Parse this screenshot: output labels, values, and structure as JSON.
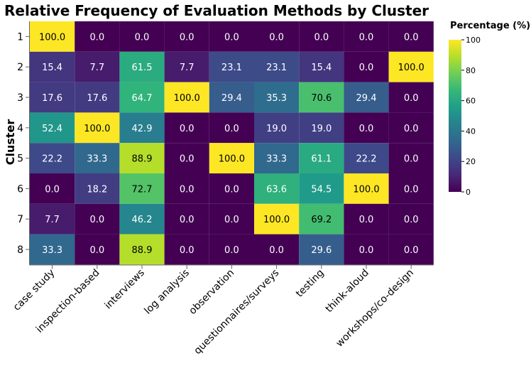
{
  "chart_data": {
    "type": "heatmap",
    "title": "Relative Frequency of Evaluation Methods by Cluster",
    "xlabel": "",
    "ylabel": "Cluster",
    "x_categories": [
      "case study",
      "inspection-based",
      "interviews",
      "log analysis",
      "observation",
      "questionnaires/surveys",
      "testing",
      "think-aloud",
      "workshops/co-design"
    ],
    "y_categories": [
      "1",
      "2",
      "3",
      "4",
      "5",
      "6",
      "7",
      "8"
    ],
    "values": [
      [
        100.0,
        0.0,
        0.0,
        0.0,
        0.0,
        0.0,
        0.0,
        0.0,
        0.0
      ],
      [
        15.4,
        7.7,
        61.5,
        7.7,
        23.1,
        23.1,
        15.4,
        0.0,
        100.0
      ],
      [
        17.6,
        17.6,
        64.7,
        100.0,
        29.4,
        35.3,
        70.6,
        29.4,
        0.0
      ],
      [
        52.4,
        100.0,
        42.9,
        0.0,
        0.0,
        19.0,
        19.0,
        0.0,
        0.0
      ],
      [
        22.2,
        33.3,
        88.9,
        0.0,
        100.0,
        33.3,
        61.1,
        22.2,
        0.0
      ],
      [
        0.0,
        18.2,
        72.7,
        0.0,
        0.0,
        63.6,
        54.5,
        100.0,
        0.0
      ],
      [
        7.7,
        0.0,
        46.2,
        0.0,
        0.0,
        100.0,
        69.2,
        0.0,
        0.0
      ],
      [
        33.3,
        0.0,
        88.9,
        0.0,
        0.0,
        0.0,
        29.6,
        0.0,
        0.0
      ]
    ],
    "value_labels": [
      [
        "100.0",
        "0.0",
        "0.0",
        "0.0",
        "0.0",
        "0.0",
        "0.0",
        "0.0",
        "0.0"
      ],
      [
        "15.4",
        "7.7",
        "61.5",
        "7.7",
        "23.1",
        "23.1",
        "15.4",
        "0.0",
        "100.0"
      ],
      [
        "17.6",
        "17.6",
        "64.7",
        "100.0",
        "29.4",
        "35.3",
        "70.6",
        "29.4",
        "0.0"
      ],
      [
        "52.4",
        "100.0",
        "42.9",
        "0.0",
        "0.0",
        "19.0",
        "19.0",
        "0.0",
        "0.0"
      ],
      [
        "22.2",
        "33.3",
        "88.9",
        "0.0",
        "100.0",
        "33.3",
        "61.1",
        "22.2",
        "0.0"
      ],
      [
        "0.0",
        "18.2",
        "72.7",
        "0.0",
        "0.0",
        "63.6",
        "54.5",
        "100.0",
        "0.0"
      ],
      [
        "7.7",
        "0.0",
        "46.2",
        "0.0",
        "0.0",
        "100.0",
        "69.2",
        "0.0",
        "0.0"
      ],
      [
        "33.3",
        "0.0",
        "88.9",
        "0.0",
        "0.0",
        "0.0",
        "29.6",
        "0.0",
        "0.0"
      ]
    ],
    "colorbar": {
      "title": "Percentage (%)",
      "range": [
        0,
        100
      ],
      "ticks": [
        "0",
        "20",
        "40",
        "60",
        "80",
        "100"
      ],
      "colorscale": "viridis"
    },
    "legend_position": "top-right"
  },
  "colors": {
    "viridis": [
      "#440154",
      "#482878",
      "#3e4989",
      "#31688e",
      "#26828e",
      "#1f9e89",
      "#35b779",
      "#6ece58",
      "#b5de2b",
      "#fde725"
    ],
    "label_dark": "#000000",
    "label_light": "#ffffff",
    "axis": "#666666"
  }
}
